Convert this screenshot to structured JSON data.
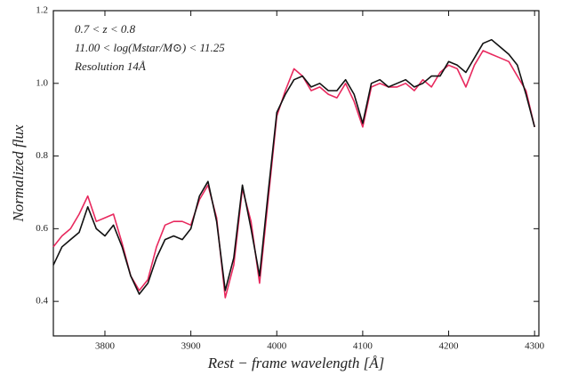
{
  "chart_data": {
    "type": "line",
    "annotations": [
      "0.7 < z < 0.8",
      "11.00 < log(Mstar/M⊙) < 11.25",
      "Resolution 14Å"
    ],
    "xlabel": "Rest − frame wavelength [Å]",
    "ylabel": "Normalized flux",
    "x": [
      3740,
      3750,
      3760,
      3770,
      3780,
      3790,
      3800,
      3810,
      3820,
      3830,
      3840,
      3850,
      3860,
      3870,
      3880,
      3890,
      3900,
      3910,
      3920,
      3930,
      3940,
      3950,
      3960,
      3970,
      3980,
      3990,
      4000,
      4010,
      4020,
      4030,
      4040,
      4050,
      4060,
      4070,
      4080,
      4090,
      4100,
      4110,
      4120,
      4130,
      4140,
      4150,
      4160,
      4170,
      4180,
      4190,
      4200,
      4210,
      4220,
      4230,
      4240,
      4250,
      4260,
      4270,
      4280,
      4290,
      4300
    ],
    "series": [
      {
        "color": "#e8295e",
        "values": [
          0.55,
          0.58,
          0.6,
          0.64,
          0.69,
          0.62,
          0.63,
          0.64,
          0.56,
          0.47,
          0.43,
          0.46,
          0.55,
          0.61,
          0.62,
          0.62,
          0.61,
          0.68,
          0.72,
          0.63,
          0.41,
          0.5,
          0.71,
          0.62,
          0.45,
          0.68,
          0.91,
          0.98,
          1.04,
          1.02,
          0.98,
          0.99,
          0.97,
          0.96,
          1.0,
          0.95,
          0.88,
          0.99,
          1.0,
          0.99,
          0.99,
          1.0,
          0.98,
          1.01,
          0.99,
          1.03,
          1.05,
          1.04,
          0.99,
          1.05,
          1.09,
          1.08,
          1.07,
          1.06,
          1.02,
          0.98,
          0.88
        ]
      },
      {
        "color": "#111111",
        "values": [
          0.5,
          0.55,
          0.57,
          0.59,
          0.66,
          0.6,
          0.58,
          0.61,
          0.55,
          0.47,
          0.42,
          0.45,
          0.52,
          0.57,
          0.58,
          0.57,
          0.6,
          0.69,
          0.73,
          0.62,
          0.43,
          0.52,
          0.72,
          0.6,
          0.47,
          0.7,
          0.92,
          0.97,
          1.01,
          1.02,
          0.99,
          1.0,
          0.98,
          0.98,
          1.01,
          0.97,
          0.89,
          1.0,
          1.01,
          0.99,
          1.0,
          1.01,
          0.99,
          1.0,
          1.02,
          1.02,
          1.06,
          1.05,
          1.03,
          1.07,
          1.11,
          1.12,
          1.1,
          1.08,
          1.05,
          0.97,
          0.88
        ]
      }
    ],
    "xlim": [
      3740,
      4305
    ],
    "xticks": [
      3800,
      3900,
      4000,
      4100,
      4200,
      4300
    ],
    "ylim": [
      0.305,
      1.2
    ],
    "yticks": [
      0.4,
      0.6,
      0.8,
      {
        "value": 1.0,
        "label": "1.0"
      },
      {
        "value": 1.2,
        "label": "1.2"
      }
    ]
  }
}
